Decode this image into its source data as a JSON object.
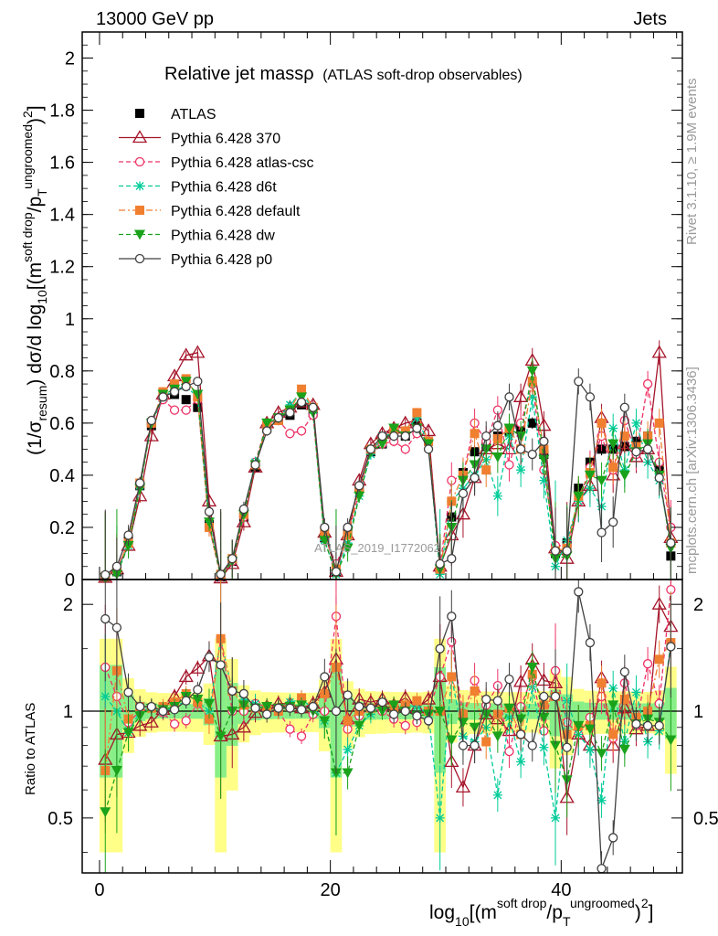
{
  "header": {
    "left": "13000 GeV pp",
    "right": "Jets"
  },
  "side_labels": {
    "upper": "Rivet 3.1.10, ≥ 1.9M events",
    "lower": "mcplots.cern.ch [arXiv:1306.3436]"
  },
  "watermark": "ATLAS_2019_I1772062",
  "chart_data": [
    {
      "type": "line",
      "title": "Relative jet massρ",
      "subtitle": "(ATLAS soft-drop observables)",
      "xlabel": "log10[(m^{soft drop}/p_T^{ungroomed})^2]",
      "ylabel": "(1/σ_{resum}) dσ/d log10[(m^{soft drop}/p_T^{ungroomed})^2]",
      "xlim": [
        -1.5,
        50.5
      ],
      "ylim": [
        0,
        2.1
      ],
      "yticks": [
        0,
        0.2,
        0.4,
        0.6,
        0.8,
        1,
        1.2,
        1.4,
        1.6,
        1.8,
        2
      ],
      "legend_position": "top-left",
      "x": [
        0.5,
        1.5,
        2.5,
        3.5,
        4.5,
        5.5,
        6.5,
        7.5,
        8.5,
        9.5,
        10.5,
        11.5,
        12.5,
        13.5,
        14.5,
        15.5,
        16.5,
        17.5,
        18.5,
        19.5,
        20.5,
        21.5,
        22.5,
        23.5,
        24.5,
        25.5,
        26.5,
        27.5,
        28.5,
        29.5,
        30.5,
        31.5,
        32.5,
        33.5,
        34.5,
        35.5,
        36.5,
        37.5,
        38.5,
        39.5,
        40.5,
        41.5,
        42.5,
        43.5,
        44.5,
        45.5,
        46.5,
        47.5,
        48.5,
        49.5
      ],
      "series": [
        {
          "name": "ATLAS",
          "color": "#000000",
          "marker": "square-filled",
          "dash": "",
          "values": [
            0.01,
            0.03,
            0.15,
            0.36,
            0.59,
            0.7,
            0.71,
            0.69,
            0.66,
            0.21,
            0.01,
            0.07,
            0.24,
            0.43,
            0.58,
            0.61,
            0.63,
            0.67,
            0.64,
            0.16,
            0.03,
            0.18,
            0.35,
            0.49,
            0.52,
            0.56,
            0.55,
            0.6,
            0.53,
            0.04,
            0.24,
            0.41,
            0.49,
            0.51,
            0.55,
            0.57,
            0.58,
            0.6,
            0.48,
            0.1,
            0.14,
            0.35,
            0.45,
            0.5,
            0.5,
            0.51,
            0.53,
            0.55,
            0.43,
            0.09
          ]
        },
        {
          "name": "Pythia 6.428 370",
          "color": "#a5152a",
          "marker": "triangle-open",
          "dash": "",
          "values": [
            0.007,
            0.04,
            0.13,
            0.32,
            0.55,
            0.71,
            0.78,
            0.86,
            0.87,
            0.3,
            0.005,
            0.06,
            0.22,
            0.43,
            0.6,
            0.64,
            0.66,
            0.68,
            0.67,
            0.18,
            0.03,
            0.17,
            0.38,
            0.52,
            0.56,
            0.58,
            0.6,
            0.61,
            0.57,
            0.05,
            0.17,
            0.25,
            0.39,
            0.5,
            0.52,
            0.5,
            0.7,
            0.84,
            0.59,
            0.12,
            0.08,
            0.3,
            0.36,
            0.62,
            0.4,
            0.52,
            0.47,
            0.5,
            0.87,
            0.16
          ]
        },
        {
          "name": "Pythia 6.428 atlas-csc",
          "color": "#ee3366",
          "marker": "circle-open",
          "dash": "5,3",
          "values": [
            0.013,
            0.04,
            0.14,
            0.36,
            0.6,
            0.69,
            0.65,
            0.65,
            0.69,
            0.2,
            0.01,
            0.07,
            0.24,
            0.45,
            0.6,
            0.61,
            0.56,
            0.57,
            0.63,
            0.16,
            0.06,
            0.16,
            0.34,
            0.5,
            0.52,
            0.53,
            0.5,
            0.56,
            0.53,
            0.05,
            0.38,
            0.4,
            0.6,
            0.53,
            0.65,
            0.44,
            0.6,
            0.75,
            0.42,
            0.13,
            0.13,
            0.3,
            0.43,
            0.55,
            0.42,
            0.61,
            0.48,
            0.75,
            0.45,
            0.2
          ]
        },
        {
          "name": "Pythia 6.428 d6t",
          "color": "#00cc99",
          "marker": "asterisk",
          "dash": "5,3",
          "values": [
            0.011,
            0.03,
            0.13,
            0.36,
            0.6,
            0.7,
            0.73,
            0.74,
            0.7,
            0.21,
            0.02,
            0.08,
            0.26,
            0.45,
            0.58,
            0.62,
            0.67,
            0.72,
            0.65,
            0.15,
            0.02,
            0.14,
            0.32,
            0.48,
            0.55,
            0.56,
            0.57,
            0.62,
            0.52,
            0.02,
            0.3,
            0.35,
            0.4,
            0.46,
            0.32,
            0.55,
            0.42,
            0.7,
            0.38,
            0.05,
            0.15,
            0.3,
            0.35,
            0.28,
            0.58,
            0.42,
            0.6,
            0.45,
            0.38,
            0.14
          ]
        },
        {
          "name": "Pythia 6.428 default",
          "color": "#f07f30",
          "marker": "square-filled",
          "dash": "7,3,2,3",
          "values": [
            0.012,
            0.04,
            0.14,
            0.37,
            0.6,
            0.72,
            0.75,
            0.77,
            0.7,
            0.2,
            0.02,
            0.08,
            0.25,
            0.44,
            0.59,
            0.61,
            0.65,
            0.73,
            0.66,
            0.18,
            0.04,
            0.17,
            0.35,
            0.5,
            0.54,
            0.57,
            0.57,
            0.64,
            0.53,
            0.04,
            0.3,
            0.4,
            0.56,
            0.42,
            0.54,
            0.58,
            0.5,
            0.76,
            0.5,
            0.11,
            0.12,
            0.32,
            0.41,
            0.6,
            0.43,
            0.55,
            0.51,
            0.55,
            0.6,
            0.14
          ]
        },
        {
          "name": "Pythia 6.428 dw",
          "color": "#1aa21a",
          "marker": "triangle-down-filled",
          "dash": "5,3",
          "values": [
            0.006,
            0.02,
            0.13,
            0.35,
            0.6,
            0.71,
            0.73,
            0.76,
            0.71,
            0.22,
            0.01,
            0.07,
            0.25,
            0.44,
            0.6,
            0.62,
            0.65,
            0.7,
            0.64,
            0.15,
            0.02,
            0.12,
            0.32,
            0.49,
            0.52,
            0.58,
            0.55,
            0.58,
            0.52,
            0.04,
            0.2,
            0.38,
            0.44,
            0.5,
            0.47,
            0.58,
            0.55,
            0.8,
            0.46,
            0.08,
            0.09,
            0.32,
            0.4,
            0.38,
            0.52,
            0.4,
            0.49,
            0.52,
            0.4,
            0.12
          ]
        },
        {
          "name": "Pythia 6.428 p0",
          "color": "#404040",
          "marker": "circle-open",
          "dash": "",
          "values": [
            0.018,
            0.05,
            0.17,
            0.37,
            0.61,
            0.7,
            0.72,
            0.74,
            0.76,
            0.26,
            0.02,
            0.08,
            0.27,
            0.44,
            0.57,
            0.62,
            0.64,
            0.68,
            0.66,
            0.2,
            0.03,
            0.2,
            0.36,
            0.5,
            0.55,
            0.55,
            0.55,
            0.58,
            0.5,
            0.06,
            0.08,
            0.33,
            0.39,
            0.55,
            0.59,
            0.7,
            0.5,
            0.48,
            0.53,
            0.11,
            0.11,
            0.76,
            0.7,
            0.18,
            0.22,
            0.66,
            0.49,
            0.5,
            0.39,
            0.14
          ]
        }
      ]
    },
    {
      "type": "line",
      "title": "",
      "xlabel": "log10[(m^{soft drop}/p_T^{ungroomed})^2]",
      "ylabel": "Ratio to ATLAS",
      "xlim": [
        -1.5,
        50.5
      ],
      "ylim": [
        0.35,
        2.35
      ],
      "yscale": "log",
      "xticks": [
        0,
        20,
        40
      ],
      "ytick_labels": [
        "0.5",
        "1",
        "2"
      ],
      "reference_line": 1,
      "bands": "yellow = total uncertainty, green = statistical uncertainty",
      "series": [
        {
          "name": "Pythia 6.428 370",
          "ratio": [
            0.73,
            0.86,
            0.87,
            0.91,
            0.93,
            1.01,
            1.1,
            1.25,
            1.32,
            1.43,
            0.85,
            0.86,
            0.9,
            0.99,
            1.03,
            1.05,
            1.05,
            1.02,
            1.05,
            1.13,
            1.4,
            0.95,
            1.08,
            1.06,
            1.08,
            1.04,
            1.09,
            1.02,
            1.08,
            1.25,
            0.72,
            0.61,
            0.8,
            0.98,
            0.95,
            0.88,
            1.21,
            1.4,
            1.22,
            1.2,
            0.57,
            0.86,
            0.8,
            1.24,
            0.8,
            1.02,
            0.89,
            0.91,
            2.0,
            1.73
          ]
        },
        {
          "name": "Pythia 6.428 atlas-csc",
          "ratio": [
            1.33,
            1.1,
            0.93,
            1.0,
            1.02,
            0.99,
            0.92,
            0.94,
            1.05,
            0.95,
            1.6,
            1.0,
            1.0,
            1.05,
            1.03,
            1.0,
            0.89,
            0.85,
            0.98,
            1.0,
            1.85,
            0.89,
            0.97,
            1.02,
            1.0,
            0.95,
            0.91,
            0.93,
            1.0,
            1.25,
            1.57,
            0.98,
            1.22,
            1.04,
            1.18,
            0.77,
            1.03,
            1.25,
            0.88,
            1.3,
            0.93,
            0.86,
            0.96,
            1.1,
            0.84,
            1.2,
            0.91,
            1.36,
            1.05,
            2.2
          ]
        },
        {
          "name": "Pythia 6.428 d6t",
          "ratio": [
            1.1,
            1.0,
            0.87,
            1.0,
            1.02,
            1.0,
            1.03,
            1.07,
            1.06,
            1.0,
            1.6,
            1.14,
            1.08,
            1.05,
            1.0,
            1.02,
            1.06,
            1.08,
            1.02,
            0.94,
            0.67,
            0.78,
            0.91,
            0.98,
            1.06,
            1.0,
            1.04,
            1.03,
            0.98,
            0.5,
            1.25,
            0.85,
            0.82,
            0.9,
            0.58,
            0.96,
            0.72,
            1.17,
            0.79,
            0.5,
            1.07,
            0.86,
            0.78,
            0.56,
            1.16,
            0.82,
            1.13,
            0.82,
            0.88,
            1.56
          ]
        },
        {
          "name": "Pythia 6.428 default",
          "ratio": [
            0.68,
            1.3,
            0.95,
            1.03,
            1.02,
            1.03,
            1.06,
            1.12,
            1.06,
            0.95,
            1.6,
            1.14,
            1.04,
            1.02,
            1.02,
            1.0,
            1.03,
            1.09,
            1.03,
            1.12,
            1.33,
            0.94,
            1.0,
            1.02,
            1.04,
            1.02,
            1.04,
            1.07,
            1.0,
            1.0,
            1.25,
            0.98,
            1.14,
            0.82,
            0.98,
            1.02,
            0.86,
            1.27,
            1.04,
            1.1,
            0.86,
            0.91,
            0.91,
            1.2,
            0.86,
            1.08,
            0.96,
            1.0,
            1.4,
            1.56
          ]
        },
        {
          "name": "Pythia 6.428 dw",
          "ratio": [
            0.52,
            0.68,
            0.87,
            0.97,
            1.02,
            1.01,
            1.03,
            1.1,
            1.08,
            1.05,
            0.85,
            1.0,
            1.04,
            1.02,
            1.03,
            1.02,
            1.03,
            1.04,
            1.0,
            0.94,
            0.67,
            0.67,
            0.91,
            1.0,
            1.0,
            1.04,
            1.0,
            0.97,
            0.98,
            1.0,
            0.83,
            0.93,
            0.9,
            0.98,
            0.85,
            1.02,
            0.95,
            1.33,
            0.96,
            0.8,
            0.64,
            0.91,
            0.89,
            0.76,
            1.04,
            0.78,
            0.92,
            0.95,
            0.93,
            0.83
          ]
        },
        {
          "name": "Pythia 6.428 p0",
          "ratio": [
            1.82,
            1.72,
            1.13,
            1.03,
            1.03,
            1.0,
            1.01,
            1.07,
            1.15,
            1.42,
            1.35,
            1.14,
            1.12,
            1.02,
            0.98,
            1.02,
            1.02,
            1.01,
            1.03,
            1.25,
            1.0,
            1.11,
            1.03,
            1.02,
            1.06,
            0.98,
            1.0,
            0.97,
            0.94,
            1.5,
            1.85,
            0.8,
            0.8,
            1.08,
            1.07,
            1.23,
            0.86,
            0.8,
            1.1,
            1.1,
            0.79,
            2.17,
            1.56,
            0.36,
            0.44,
            1.29,
            0.92,
            0.91,
            0.91,
            1.52
          ]
        }
      ]
    }
  ]
}
